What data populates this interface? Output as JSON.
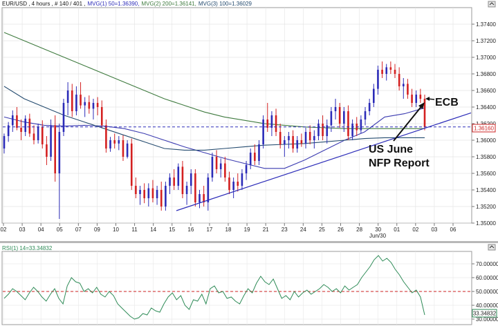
{
  "header": {
    "symbol_info": "EUR/USD , 4 hours , # 140 / 401 ,",
    "mvg1": "MVG(1) 50=1.36390,",
    "mvg2": "MVG(2) 200=1.36141,",
    "mvg3": "MVG(3) 100=1.36029"
  },
  "rsi_header": "RSI(1) 14=33.34832",
  "price_label": "1.36160",
  "rsi_label": "33.34832",
  "annotations": {
    "ecb": "ECB",
    "nfp_line1": "US June",
    "nfp_line2": "NFP Report"
  },
  "sub_date_label": "Jun/30",
  "colors": {
    "bull": "#2b2bb8",
    "bear": "#d42020",
    "ma50": "#3a3ab0",
    "ma100": "#234a6e",
    "ma200": "#3e7a3e",
    "rsi_line": "#2e8b57",
    "dashed_line": "#2b2bb8",
    "rsi_ref": "#cc2222",
    "trendline": "#2b2bb8",
    "price_box_text": "#cc2222"
  },
  "chart_data": [
    {
      "type": "candlestick",
      "title": "EUR/USD , 4 hours",
      "x_tick_labels": [
        "02",
        "03",
        "04",
        "05",
        "07",
        "09",
        "10",
        "11",
        "14",
        "15",
        "16",
        "17",
        "18",
        "19",
        "21",
        "23",
        "24",
        "25",
        "26",
        "28",
        "30",
        "01",
        "02",
        "03",
        "06"
      ],
      "y_tick_labels": [
        "1.35000",
        "1.35200",
        "1.35400",
        "1.35600",
        "1.35800",
        "1.36000",
        "1.36200",
        "1.36400",
        "1.36600",
        "1.36800",
        "1.37000",
        "1.37200",
        "1.37400"
      ],
      "ylim": [
        1.35,
        1.376
      ],
      "candles": [
        [
          1.359,
          1.3608,
          1.3584,
          1.3605
        ],
        [
          1.3605,
          1.3622,
          1.3598,
          1.3618
        ],
        [
          1.3618,
          1.3636,
          1.361,
          1.363
        ],
        [
          1.363,
          1.364,
          1.3612,
          1.3615
        ],
        [
          1.3615,
          1.3625,
          1.36,
          1.361
        ],
        [
          1.361,
          1.363,
          1.3605,
          1.3626
        ],
        [
          1.3626,
          1.3632,
          1.3604,
          1.3608
        ],
        [
          1.3608,
          1.3618,
          1.3595,
          1.36
        ],
        [
          1.36,
          1.362,
          1.3596,
          1.3616
        ],
        [
          1.3616,
          1.3624,
          1.359,
          1.3595
        ],
        [
          1.3595,
          1.3605,
          1.357,
          1.358
        ],
        [
          1.358,
          1.3625,
          1.3575,
          1.3618
        ],
        [
          1.3618,
          1.363,
          1.355,
          1.356
        ],
        [
          1.356,
          1.362,
          1.3505,
          1.361
        ],
        [
          1.361,
          1.365,
          1.3605,
          1.3645
        ],
        [
          1.3645,
          1.367,
          1.363,
          1.366
        ],
        [
          1.366,
          1.3668,
          1.3628,
          1.3635
        ],
        [
          1.3635,
          1.3665,
          1.363,
          1.3655
        ],
        [
          1.3655,
          1.367,
          1.3638,
          1.3642
        ],
        [
          1.3642,
          1.3652,
          1.3628,
          1.3646
        ],
        [
          1.3646,
          1.3654,
          1.3632,
          1.3638
        ],
        [
          1.3638,
          1.365,
          1.3625,
          1.3645
        ],
        [
          1.3645,
          1.3652,
          1.363,
          1.364
        ],
        [
          1.364,
          1.3648,
          1.3615,
          1.3618
        ],
        [
          1.3618,
          1.3625,
          1.3585,
          1.359
        ],
        [
          1.359,
          1.3604,
          1.3586,
          1.36
        ],
        [
          1.36,
          1.3608,
          1.359,
          1.3596
        ],
        [
          1.3596,
          1.3605,
          1.3588,
          1.36
        ],
        [
          1.36,
          1.3606,
          1.3575,
          1.358
        ],
        [
          1.358,
          1.36,
          1.3578,
          1.3596
        ],
        [
          1.3596,
          1.3602,
          1.354,
          1.3545
        ],
        [
          1.3545,
          1.3555,
          1.353,
          1.3535
        ],
        [
          1.3535,
          1.3545,
          1.3522,
          1.354
        ],
        [
          1.354,
          1.3548,
          1.3524,
          1.353
        ],
        [
          1.353,
          1.3548,
          1.352,
          1.3542
        ],
        [
          1.3542,
          1.3552,
          1.3525,
          1.353
        ],
        [
          1.353,
          1.3545,
          1.3522,
          1.354
        ],
        [
          1.354,
          1.355,
          1.3515,
          1.352
        ],
        [
          1.352,
          1.355,
          1.3515,
          1.3545
        ],
        [
          1.3545,
          1.356,
          1.3535,
          1.3555
        ],
        [
          1.3555,
          1.3565,
          1.354,
          1.3545
        ],
        [
          1.3545,
          1.3572,
          1.354,
          1.3568
        ],
        [
          1.3568,
          1.3575,
          1.353,
          1.3535
        ],
        [
          1.3535,
          1.355,
          1.3522,
          1.3545
        ],
        [
          1.3545,
          1.3565,
          1.3535,
          1.356
        ],
        [
          1.356,
          1.3565,
          1.352,
          1.3525
        ],
        [
          1.3525,
          1.354,
          1.3518,
          1.3535
        ],
        [
          1.3535,
          1.3545,
          1.352,
          1.3525
        ],
        [
          1.3525,
          1.356,
          1.3515,
          1.3555
        ],
        [
          1.3555,
          1.3585,
          1.355,
          1.358
        ],
        [
          1.358,
          1.3588,
          1.356,
          1.3565
        ],
        [
          1.3565,
          1.3578,
          1.3555,
          1.3572
        ],
        [
          1.3572,
          1.358,
          1.355,
          1.3555
        ],
        [
          1.3555,
          1.3562,
          1.3535,
          1.354
        ],
        [
          1.354,
          1.3555,
          1.353,
          1.355
        ],
        [
          1.355,
          1.356,
          1.3538,
          1.3545
        ],
        [
          1.3545,
          1.3565,
          1.354,
          1.356
        ],
        [
          1.356,
          1.3575,
          1.3552,
          1.357
        ],
        [
          1.357,
          1.359,
          1.3565,
          1.3585
        ],
        [
          1.3585,
          1.3595,
          1.357,
          1.3575
        ],
        [
          1.3575,
          1.36,
          1.357,
          1.3595
        ],
        [
          1.3595,
          1.363,
          1.359,
          1.3625
        ],
        [
          1.3625,
          1.3645,
          1.361,
          1.3615
        ],
        [
          1.3615,
          1.3635,
          1.3605,
          1.363
        ],
        [
          1.363,
          1.3638,
          1.3605,
          1.361
        ],
        [
          1.361,
          1.362,
          1.359,
          1.3595
        ],
        [
          1.3595,
          1.3605,
          1.358,
          1.36
        ],
        [
          1.36,
          1.361,
          1.359,
          1.3605
        ],
        [
          1.3605,
          1.3612,
          1.3585,
          1.359
        ],
        [
          1.359,
          1.3605,
          1.3585,
          1.36
        ],
        [
          1.36,
          1.3608,
          1.3592,
          1.3596
        ],
        [
          1.3596,
          1.3615,
          1.359,
          1.361
        ],
        [
          1.361,
          1.3618,
          1.3595,
          1.36
        ],
        [
          1.36,
          1.3612,
          1.359,
          1.3605
        ],
        [
          1.3605,
          1.3625,
          1.36,
          1.362
        ],
        [
          1.362,
          1.363,
          1.36,
          1.3605
        ],
        [
          1.3605,
          1.3625,
          1.3596,
          1.3618
        ],
        [
          1.3618,
          1.364,
          1.361,
          1.3635
        ],
        [
          1.3635,
          1.365,
          1.3625,
          1.364
        ],
        [
          1.364,
          1.3645,
          1.3615,
          1.362
        ],
        [
          1.362,
          1.364,
          1.361,
          1.3635
        ],
        [
          1.3635,
          1.3642,
          1.36,
          1.3605
        ],
        [
          1.3605,
          1.3625,
          1.36,
          1.362
        ],
        [
          1.362,
          1.3628,
          1.3605,
          1.3612
        ],
        [
          1.3612,
          1.363,
          1.3608,
          1.3625
        ],
        [
          1.3625,
          1.364,
          1.3618,
          1.3635
        ],
        [
          1.3635,
          1.365,
          1.363,
          1.3645
        ],
        [
          1.3645,
          1.3668,
          1.364,
          1.3662
        ],
        [
          1.3662,
          1.369,
          1.3655,
          1.3685
        ],
        [
          1.3685,
          1.3695,
          1.3675,
          1.368
        ],
        [
          1.368,
          1.3692,
          1.3672,
          1.3688
        ],
        [
          1.3688,
          1.3695,
          1.368,
          1.3685
        ],
        [
          1.3685,
          1.3692,
          1.3675,
          1.368
        ],
        [
          1.368,
          1.3688,
          1.366,
          1.3665
        ],
        [
          1.3665,
          1.3675,
          1.365,
          1.3668
        ],
        [
          1.3668,
          1.3674,
          1.365,
          1.3655
        ],
        [
          1.3655,
          1.3662,
          1.364,
          1.3645
        ],
        [
          1.3645,
          1.366,
          1.364,
          1.3655
        ],
        [
          1.3655,
          1.3662,
          1.3645,
          1.365
        ],
        [
          1.365,
          1.3655,
          1.3612,
          1.3616
        ]
      ],
      "series": [
        {
          "name": "MVG(1) 50",
          "values": [
            1.3628,
            1.3622,
            1.3618,
            1.3617,
            1.3618,
            1.3617,
            1.3614,
            1.3608,
            1.36,
            1.3592,
            1.3585,
            1.3578,
            1.3572,
            1.3566,
            1.3566,
            1.3576,
            1.3588,
            1.36,
            1.361,
            1.3628,
            1.3632,
            1.3639
          ]
        },
        {
          "name": "MVG(2) 200",
          "values": [
            1.373,
            1.372,
            1.371,
            1.37,
            1.369,
            1.368,
            1.367,
            1.366,
            1.365,
            1.3642,
            1.3634,
            1.3628,
            1.3624,
            1.362,
            1.3618,
            1.3616,
            1.3615,
            1.3614,
            1.3614,
            1.3614,
            1.3614,
            1.3614
          ]
        },
        {
          "name": "MVG(3) 100",
          "values": [
            1.3665,
            1.365,
            1.364,
            1.363,
            1.3622,
            1.3614,
            1.3606,
            1.3598,
            1.359,
            1.3588,
            1.3588,
            1.359,
            1.3592,
            1.3594,
            1.3595,
            1.3596,
            1.3598,
            1.36,
            1.3602,
            1.3603,
            1.3603,
            1.3603
          ]
        }
      ],
      "reference_lines": [
        {
          "y": 1.3616,
          "style": "dashed"
        }
      ],
      "trendline": [
        [
          1.3515,
          0.0
        ],
        [
          1.3633,
          1.0
        ]
      ]
    },
    {
      "type": "line",
      "title": "RSI(1) 14=33.34832",
      "y_tick_labels": [
        "30.00000",
        "40.00000",
        "50.00000",
        "60.00000",
        "70.00000"
      ],
      "ylim": [
        27,
        78
      ],
      "reference_lines": [
        {
          "y": 50,
          "style": "dashed"
        }
      ],
      "values": [
        45,
        48,
        52,
        50,
        47,
        44,
        49,
        53,
        50,
        46,
        43,
        48,
        52,
        45,
        41,
        54,
        60,
        57,
        56,
        50,
        52,
        49,
        53,
        48,
        46,
        50,
        47,
        41,
        38,
        35,
        32,
        30,
        31,
        34,
        33,
        38,
        36,
        35,
        41,
        46,
        49,
        44,
        47,
        40,
        37,
        44,
        43,
        48,
        41,
        52,
        54,
        49,
        50,
        45,
        46,
        43,
        41,
        47,
        52,
        49,
        56,
        61,
        57,
        55,
        59,
        52,
        45,
        47,
        44,
        50,
        46,
        49,
        51,
        48,
        50,
        52,
        55,
        53,
        50,
        52,
        49,
        54,
        51,
        53,
        55,
        60,
        64,
        68,
        73,
        76,
        72,
        74,
        71,
        66,
        62,
        57,
        53,
        49,
        51,
        46,
        33
      ]
    }
  ]
}
